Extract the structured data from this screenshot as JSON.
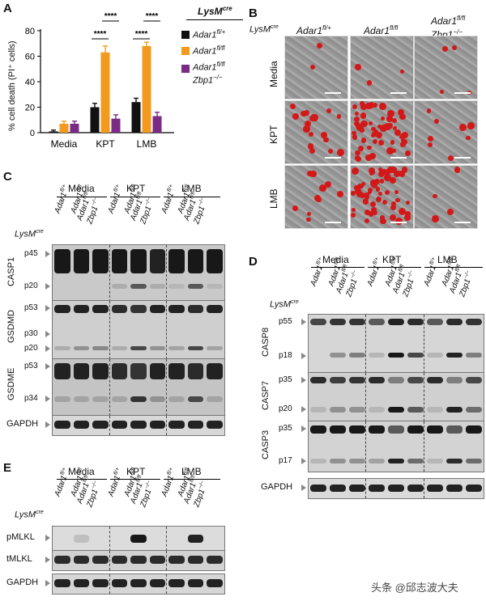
{
  "panels": {
    "A": "A",
    "B": "B",
    "C": "C",
    "D": "D",
    "E": "E"
  },
  "chart_data": {
    "type": "bar",
    "categories": [
      "Media",
      "KPT",
      "LMB"
    ],
    "ylabel": "% cell death (PI⁺ cells)",
    "ylim": [
      0,
      80
    ],
    "yticks": [
      "0",
      "20",
      "40",
      "60",
      "80"
    ],
    "series": [
      {
        "name": "Adar1fl/+",
        "values": [
          1,
          20,
          24
        ],
        "errors": [
          1,
          3,
          3
        ],
        "color": "#111111"
      },
      {
        "name": "Adar1fl/fl",
        "values": [
          7,
          63,
          68
        ],
        "errors": [
          2,
          5,
          3
        ],
        "color": "#f39a1e"
      },
      {
        "name": "Adar1fl/fl Zbp1−/−",
        "values": [
          7,
          11,
          13
        ],
        "errors": [
          2,
          3,
          3
        ],
        "color": "#7b2a86"
      }
    ],
    "significance": [
      "****",
      "****",
      "****",
      "****"
    ]
  },
  "legend": {
    "header_base": "LysM",
    "header_sup": "cre",
    "items": [
      {
        "base": "Adar1",
        "sup": "fl/+",
        "line2": "",
        "line2sup": ""
      },
      {
        "base": "Adar1",
        "sup": "fl/fl",
        "line2": "",
        "line2sup": ""
      },
      {
        "base": "Adar1",
        "sup": "fl/fl",
        "line2": "Zbp1",
        "line2sup": "−/−"
      }
    ]
  },
  "genotype_labels": {
    "lysm": "LysM",
    "lysm_sup": "cre",
    "g1": "Adar1",
    "g1_sup": "fl/+",
    "g2": "Adar1",
    "g2_sup": "fl/fl",
    "g3a": "Adar1",
    "g3a_sup": "fl/fl",
    "g3b": "Zbp1",
    "g3b_sup": "−/−"
  },
  "treatments": [
    "Media",
    "KPT",
    "LMB"
  ],
  "panel_C": {
    "blots": [
      {
        "name": "CASP1",
        "markers": [
          "p45",
          "p20"
        ]
      },
      {
        "name": "GSDMD",
        "markers": [
          "p53",
          "p30",
          "p20"
        ]
      },
      {
        "name": "GSDME",
        "markers": [
          "p53",
          "p34"
        ]
      },
      {
        "name": "GAPDH",
        "markers": []
      }
    ]
  },
  "panel_D": {
    "blots": [
      {
        "name": "CASP8",
        "markers": [
          "p55",
          "p18"
        ]
      },
      {
        "name": "CASP7",
        "markers": [
          "p35",
          "p20"
        ]
      },
      {
        "name": "CASP3",
        "markers": [
          "p35",
          "p17"
        ]
      },
      {
        "name": "GAPDH",
        "markers": []
      }
    ]
  },
  "panel_E": {
    "blots": [
      {
        "name": "pMLKL",
        "markers": []
      },
      {
        "name": "tMLKL",
        "markers": []
      },
      {
        "name": "GAPDH",
        "markers": []
      }
    ]
  },
  "watermark": "头条 @邱志波大夫"
}
